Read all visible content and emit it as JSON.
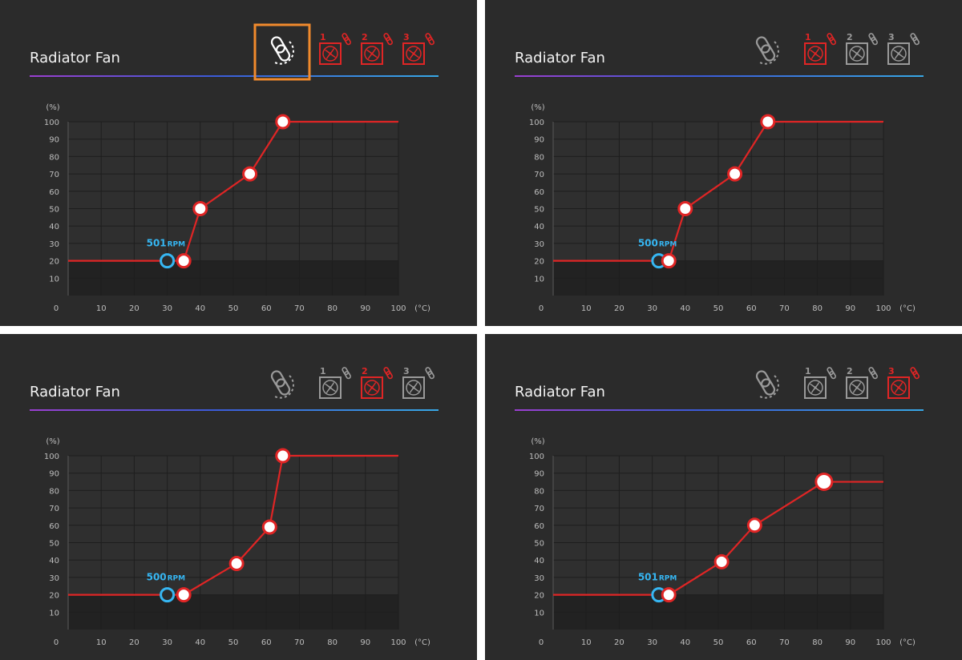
{
  "colors": {
    "background": "#2b2b2b",
    "active": "#e02525",
    "inactive": "#9a9a9a",
    "curve": "#e02525",
    "current": "#36b6f2",
    "highlight": "#f08a2c"
  },
  "panels": [
    {
      "title": "Radiator Fan",
      "link_all_selected": true,
      "link_highlighted": true,
      "fans": [
        {
          "label": "1",
          "active": true,
          "icon": "fan-icon"
        },
        {
          "label": "2",
          "active": true,
          "icon": "fan-icon"
        },
        {
          "label": "3",
          "active": true,
          "icon": "fan-icon"
        }
      ],
      "rpm_value": "501",
      "rpm_unit": "RPM",
      "current_point": {
        "temp": 30,
        "percent": 20
      },
      "curve_points": [
        [
          35,
          20
        ],
        [
          40,
          50
        ],
        [
          55,
          70
        ],
        [
          65,
          100
        ]
      ]
    },
    {
      "title": "Radiator Fan",
      "link_all_selected": false,
      "link_highlighted": false,
      "fans": [
        {
          "label": "1",
          "active": true,
          "icon": "fan-icon"
        },
        {
          "label": "2",
          "active": false,
          "icon": "fan-icon"
        },
        {
          "label": "3",
          "active": false,
          "icon": "fan-icon"
        }
      ],
      "rpm_value": "500",
      "rpm_unit": "RPM",
      "current_point": {
        "temp": 32,
        "percent": 20
      },
      "curve_points": [
        [
          35,
          20
        ],
        [
          40,
          50
        ],
        [
          55,
          70
        ],
        [
          65,
          100
        ]
      ]
    },
    {
      "title": "Radiator Fan",
      "link_all_selected": false,
      "link_highlighted": false,
      "fans": [
        {
          "label": "1",
          "active": false,
          "icon": "fan-icon"
        },
        {
          "label": "2",
          "active": true,
          "icon": "fan-icon"
        },
        {
          "label": "3",
          "active": false,
          "icon": "fan-icon"
        }
      ],
      "rpm_value": "500",
      "rpm_unit": "RPM",
      "current_point": {
        "temp": 30,
        "percent": 20
      },
      "curve_points": [
        [
          35,
          20
        ],
        [
          51,
          38
        ],
        [
          61,
          59
        ],
        [
          65,
          100
        ]
      ]
    },
    {
      "title": "Radiator Fan",
      "link_all_selected": false,
      "link_highlighted": false,
      "fans": [
        {
          "label": "1",
          "active": false,
          "icon": "fan-icon"
        },
        {
          "label": "2",
          "active": false,
          "icon": "fan-icon"
        },
        {
          "label": "3",
          "active": true,
          "icon": "fan-icon"
        }
      ],
      "rpm_value": "501",
      "rpm_unit": "RPM",
      "current_point": {
        "temp": 32,
        "percent": 20
      },
      "curve_points": [
        [
          35,
          20
        ],
        [
          51,
          39
        ],
        [
          61,
          60
        ],
        [
          82,
          85
        ]
      ]
    }
  ],
  "chart_data": [
    {
      "type": "line",
      "y_unit": "(%)",
      "x_unit": "(°C)",
      "x_ticks": [
        "0",
        "10",
        "20",
        "30",
        "40",
        "50",
        "60",
        "70",
        "80",
        "90",
        "100"
      ],
      "y_ticks": [
        "10",
        "20",
        "30",
        "40",
        "50",
        "60",
        "70",
        "80",
        "90",
        "100"
      ],
      "xlim": [
        0,
        100
      ],
      "ylim": [
        0,
        100
      ],
      "series": [
        {
          "x": [
            35,
            40,
            55,
            65
          ],
          "y": [
            20,
            50,
            70,
            100
          ]
        }
      ]
    },
    {
      "type": "line",
      "y_unit": "(%)",
      "x_unit": "(°C)",
      "x_ticks": [
        "0",
        "10",
        "20",
        "30",
        "40",
        "50",
        "60",
        "70",
        "80",
        "90",
        "100"
      ],
      "y_ticks": [
        "10",
        "20",
        "30",
        "40",
        "50",
        "60",
        "70",
        "80",
        "90",
        "100"
      ],
      "xlim": [
        0,
        100
      ],
      "ylim": [
        0,
        100
      ],
      "series": [
        {
          "x": [
            35,
            40,
            55,
            65
          ],
          "y": [
            20,
            50,
            70,
            100
          ]
        }
      ]
    },
    {
      "type": "line",
      "y_unit": "(%)",
      "x_unit": "(°C)",
      "x_ticks": [
        "0",
        "10",
        "20",
        "30",
        "40",
        "50",
        "60",
        "70",
        "80",
        "90",
        "100"
      ],
      "y_ticks": [
        "10",
        "20",
        "30",
        "40",
        "50",
        "60",
        "70",
        "80",
        "90",
        "100"
      ],
      "xlim": [
        0,
        100
      ],
      "ylim": [
        0,
        100
      ],
      "series": [
        {
          "x": [
            35,
            51,
            61,
            65
          ],
          "y": [
            20,
            38,
            59,
            100
          ]
        }
      ]
    },
    {
      "type": "line",
      "y_unit": "(%)",
      "x_unit": "(°C)",
      "x_ticks": [
        "0",
        "10",
        "20",
        "30",
        "40",
        "50",
        "60",
        "70",
        "80",
        "90",
        "100"
      ],
      "y_ticks": [
        "10",
        "20",
        "30",
        "40",
        "50",
        "60",
        "70",
        "80",
        "90",
        "100"
      ],
      "xlim": [
        0,
        100
      ],
      "ylim": [
        0,
        100
      ],
      "series": [
        {
          "x": [
            35,
            51,
            61,
            82
          ],
          "y": [
            20,
            39,
            60,
            85
          ]
        }
      ]
    }
  ]
}
